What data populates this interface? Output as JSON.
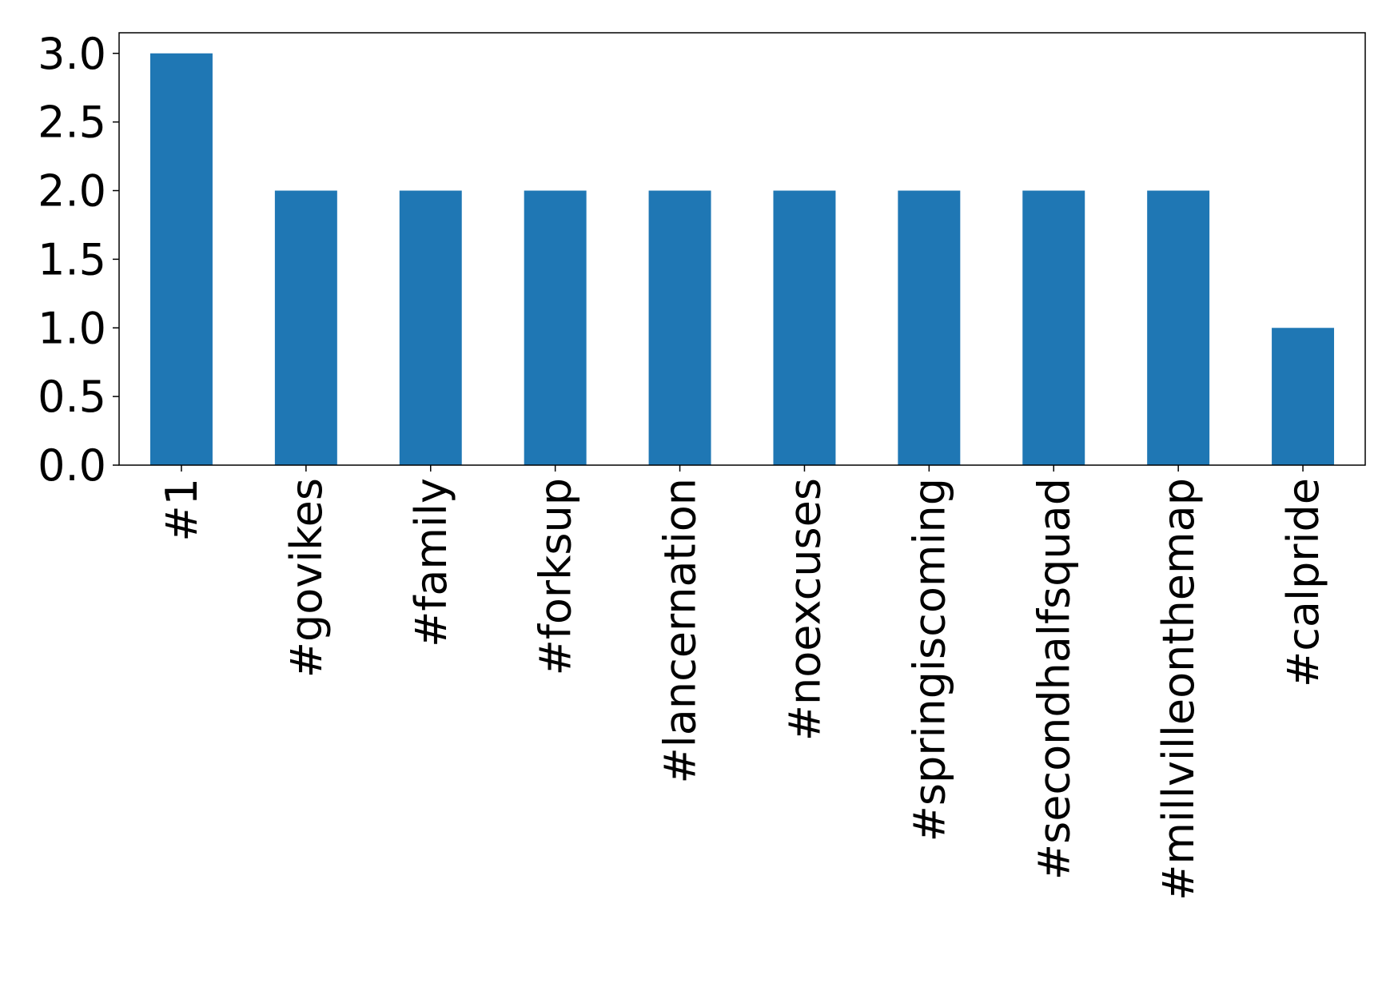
{
  "chart_data": {
    "type": "bar",
    "categories": [
      "#1",
      "#govikes",
      "#family",
      "#forksup",
      "#lancernation",
      "#noexcuses",
      "#springiscoming",
      "#secondhalfsquad",
      "#millvilleonthemap",
      "#calpride"
    ],
    "values": [
      3,
      2,
      2,
      2,
      2,
      2,
      2,
      2,
      2,
      1
    ],
    "color": "#1f77b4",
    "ylim": [
      0,
      3.15
    ],
    "yticks": [
      {
        "value": 0,
        "label": "0.0"
      },
      0.5,
      {
        "value": 1,
        "label": "1.0"
      },
      1.5,
      {
        "value": 2,
        "label": "2.0"
      },
      2.5,
      {
        "value": 3,
        "label": "3.0"
      }
    ],
    "grid": false
  }
}
